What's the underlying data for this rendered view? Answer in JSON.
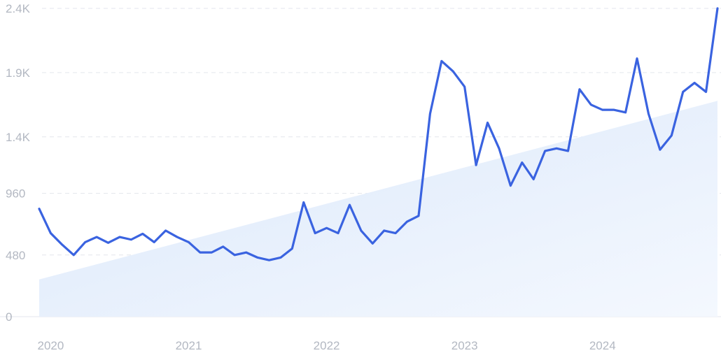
{
  "chart_data": {
    "type": "line",
    "title": "",
    "xlabel": "",
    "ylabel": "",
    "ylim": [
      0,
      2400
    ],
    "yticks": [
      0,
      480,
      960,
      1400,
      1900,
      2400
    ],
    "ytick_labels": [
      "0",
      "480",
      "960",
      "1.4K",
      "1.9K",
      "2.4K"
    ],
    "xticks": [
      {
        "label": "2020",
        "date": "2020-01"
      },
      {
        "label": "2021",
        "date": "2021-01"
      },
      {
        "label": "2022",
        "date": "2022-01"
      },
      {
        "label": "2023",
        "date": "2023-01"
      },
      {
        "label": "2024",
        "date": "2024-01"
      }
    ],
    "grid": true,
    "legend": "none",
    "line_color": "#3a63e0",
    "trend_color": "#dbe8fb",
    "trend": {
      "start": 290,
      "end": 1680
    },
    "x": [
      "2019-12",
      "2020-01",
      "2020-02",
      "2020-03",
      "2020-04",
      "2020-05",
      "2020-06",
      "2020-07",
      "2020-08",
      "2020-09",
      "2020-10",
      "2020-11",
      "2020-12",
      "2021-01",
      "2021-02",
      "2021-03",
      "2021-04",
      "2021-05",
      "2021-06",
      "2021-07",
      "2021-08",
      "2021-09",
      "2021-10",
      "2021-11",
      "2021-12",
      "2022-01",
      "2022-02",
      "2022-03",
      "2022-04",
      "2022-05",
      "2022-06",
      "2022-07",
      "2022-08",
      "2022-09",
      "2022-10",
      "2022-11",
      "2022-12",
      "2023-01",
      "2023-02",
      "2023-03",
      "2023-04",
      "2023-05",
      "2023-06",
      "2023-07",
      "2023-08",
      "2023-09",
      "2023-10",
      "2023-11",
      "2023-12",
      "2024-01",
      "2024-02",
      "2024-03",
      "2024-04",
      "2024-05",
      "2024-06",
      "2024-07",
      "2024-08",
      "2024-09",
      "2024-10",
      "2024-11"
    ],
    "series": [
      {
        "values": [
          840,
          650,
          560,
          480,
          580,
          620,
          575,
          620,
          600,
          645,
          580,
          670,
          620,
          580,
          500,
          500,
          545,
          480,
          500,
          460,
          440,
          460,
          530,
          890,
          650,
          690,
          650,
          870,
          670,
          570,
          670,
          650,
          740,
          785,
          1580,
          1990,
          1910,
          1790,
          1180,
          1510,
          1310,
          1020,
          1200,
          1070,
          1290,
          1310,
          1290,
          1770,
          1650,
          1610,
          1610,
          1590,
          2010,
          1580,
          1300,
          1410,
          1750,
          1820,
          1750,
          2400
        ]
      }
    ]
  }
}
